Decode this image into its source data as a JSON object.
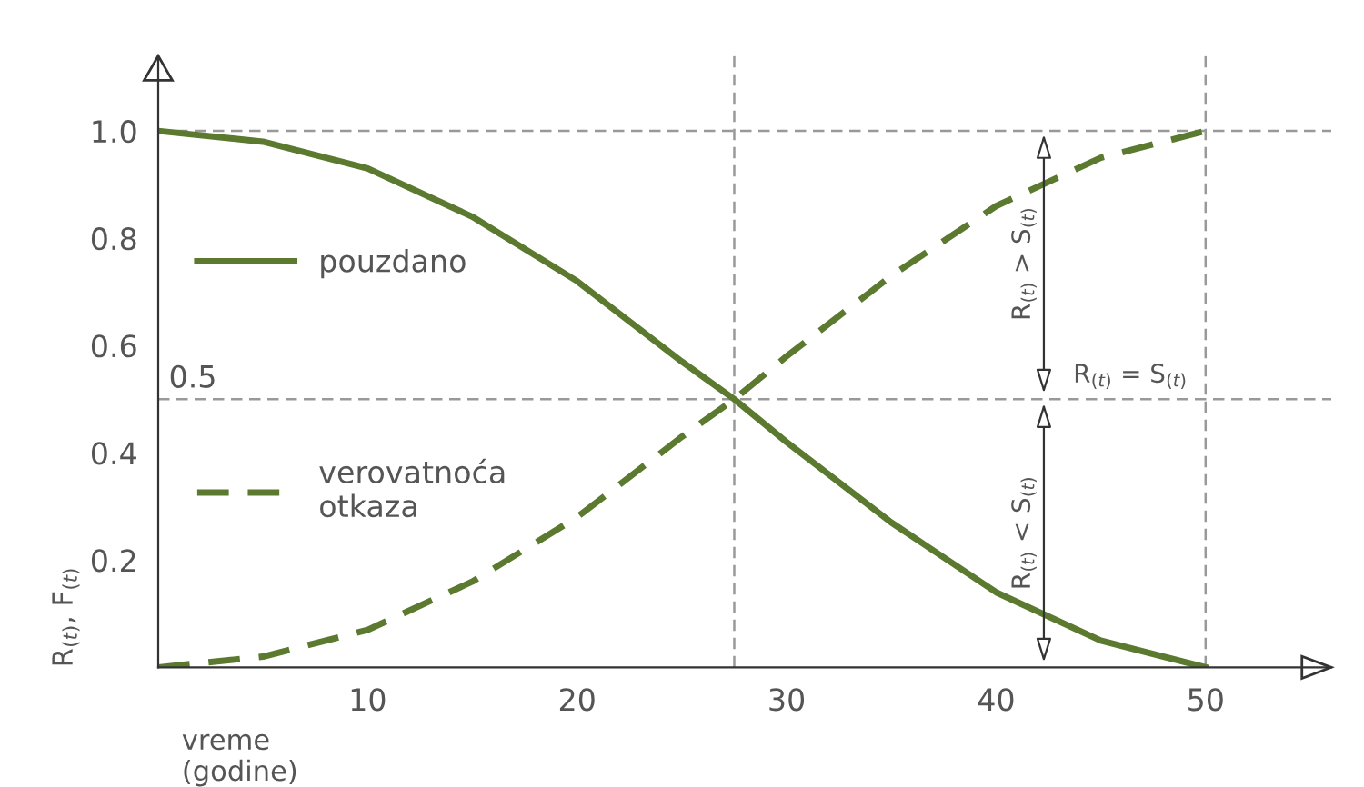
{
  "chart_data": {
    "type": "line",
    "xlabel": "vreme\n(godine)",
    "ylabel": "R$_{(t)}$, F$_{(t)}$",
    "x": [
      0,
      5,
      10,
      15,
      20,
      25,
      27.5,
      30,
      35,
      40,
      45,
      50
    ],
    "series": [
      {
        "name": "pouzdano",
        "color": "#5b7a2f",
        "line_style": "solid",
        "values": [
          1.0,
          0.98,
          0.93,
          0.84,
          0.72,
          0.57,
          0.5,
          0.42,
          0.27,
          0.14,
          0.05,
          0.0
        ]
      },
      {
        "name": "verovatnoća\notkaza",
        "color": "#5b7a2f",
        "line_style": "dashed",
        "values": [
          0.0,
          0.02,
          0.07,
          0.16,
          0.28,
          0.43,
          0.5,
          0.58,
          0.73,
          0.86,
          0.95,
          1.0
        ]
      }
    ],
    "xlim": [
      0,
      56
    ],
    "ylim": [
      0,
      1.14
    ],
    "xticks": [
      10,
      20,
      30,
      40,
      50
    ],
    "yticks": [
      0.2,
      0.4,
      0.6,
      0.8,
      {
        "value": 1.0,
        "label": "1.0"
      }
    ],
    "ref_lines": [
      {
        "axis": "y",
        "value": 1.0,
        "label": null,
        "color": "#999999",
        "line_style": "dashed"
      },
      {
        "axis": "y",
        "value": 0.5,
        "label": "0.5",
        "color": "#999999",
        "line_style": "dashed"
      },
      {
        "axis": "x",
        "value": 27.5,
        "label": null,
        "color": "#999999",
        "line_style": "dashed"
      },
      {
        "axis": "x",
        "value": 50,
        "label": null,
        "color": "#999999",
        "line_style": "dashed"
      }
    ],
    "annotations": [
      "R$_{(t)}$ > S$_{(t)}$",
      "R$_{(t)}$ = S$_{(t)}$",
      "R$_{(t)}$ < S$_{(t)}$"
    ],
    "legend": "left",
    "grid": false
  }
}
